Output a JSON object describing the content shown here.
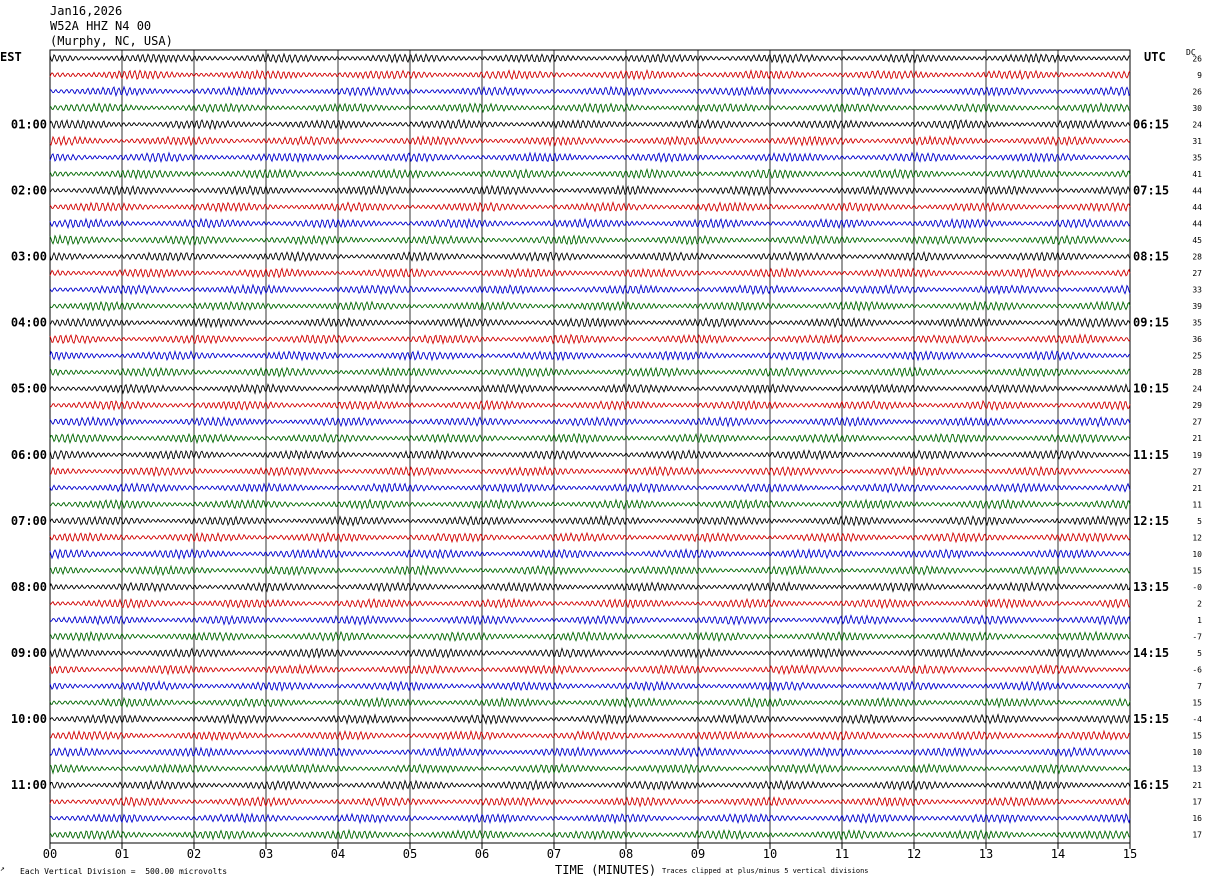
{
  "header": {
    "date": "Jan16,2026",
    "station": "W52A HHZ N4 00",
    "location": "(Murphy, NC, USA)"
  },
  "tz_left": "EST",
  "tz_right": "UTC",
  "dc_label": "DC",
  "footer": {
    "scale_note": "Each Vertical Division =  500.00 microvolts",
    "clip_note": "Traces clipped at plus/minus 5 vertical divisions",
    "xlabel": "TIME (MINUTES)"
  },
  "colors": {
    "trace_cycle": [
      "#000000",
      "#d00000",
      "#0000cc",
      "#006600"
    ],
    "grid": "#000000"
  },
  "chart_data": {
    "type": "line",
    "title": "W52A HHZ N4 00",
    "xlabel": "TIME (MINUTES)",
    "x_ticks": [
      "00",
      "01",
      "02",
      "03",
      "04",
      "05",
      "06",
      "07",
      "08",
      "09",
      "10",
      "11",
      "12",
      "13",
      "14",
      "15"
    ],
    "xlim": [
      0,
      15
    ],
    "rows": 48,
    "left_time_labels": [
      "01:00",
      "02:00",
      "03:00",
      "04:00",
      "05:00",
      "06:00",
      "07:00",
      "08:00",
      "09:00",
      "10:00",
      "11:00"
    ],
    "right_time_labels": [
      "06:15",
      "07:15",
      "08:15",
      "09:15",
      "10:15",
      "11:15",
      "12:15",
      "13:15",
      "14:15",
      "15:15",
      "16:15"
    ],
    "dc_offsets": [
      "26",
      "9",
      "26",
      "30",
      "24",
      "31",
      "35",
      "41",
      "44",
      "44",
      "44",
      "45",
      "28",
      "27",
      "33",
      "39",
      "35",
      "36",
      "25",
      "28",
      "24",
      "29",
      "27",
      "21",
      "19",
      "27",
      "21",
      "11",
      "5",
      "12",
      "10",
      "15",
      "-0",
      "2",
      "1",
      "-7",
      "5",
      "-6",
      "7",
      "15",
      "-4",
      "15",
      "10",
      "13",
      "21",
      "17",
      "16",
      "17"
    ]
  }
}
